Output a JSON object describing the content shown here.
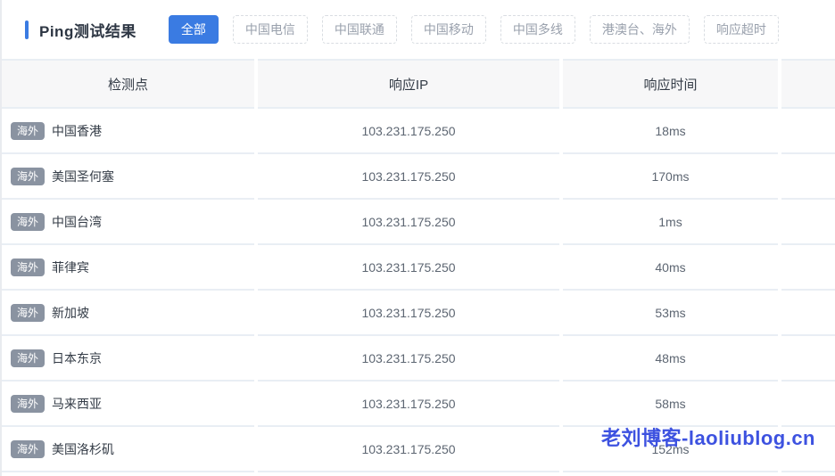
{
  "header": {
    "title": "Ping测试结果",
    "filters": [
      {
        "label": "全部",
        "active": true
      },
      {
        "label": "中国电信",
        "active": false
      },
      {
        "label": "中国联通",
        "active": false
      },
      {
        "label": "中国移动",
        "active": false
      },
      {
        "label": "中国多线",
        "active": false
      },
      {
        "label": "港澳台、海外",
        "active": false
      },
      {
        "label": "响应超时",
        "active": false
      }
    ]
  },
  "table": {
    "columns": [
      "检测点",
      "响应IP",
      "响应时间"
    ],
    "rows": [
      {
        "tag": "海外",
        "location": "中国香港",
        "ip": "103.231.175.250",
        "time": "18ms"
      },
      {
        "tag": "海外",
        "location": "美国圣何塞",
        "ip": "103.231.175.250",
        "time": "170ms"
      },
      {
        "tag": "海外",
        "location": "中国台湾",
        "ip": "103.231.175.250",
        "time": "1ms"
      },
      {
        "tag": "海外",
        "location": "菲律宾",
        "ip": "103.231.175.250",
        "time": "40ms"
      },
      {
        "tag": "海外",
        "location": "新加坡",
        "ip": "103.231.175.250",
        "time": "53ms"
      },
      {
        "tag": "海外",
        "location": "日本东京",
        "ip": "103.231.175.250",
        "time": "48ms"
      },
      {
        "tag": "海外",
        "location": "马来西亚",
        "ip": "103.231.175.250",
        "time": "58ms"
      },
      {
        "tag": "海外",
        "location": "美国洛杉矶",
        "ip": "103.231.175.250",
        "time": "152ms"
      }
    ]
  },
  "watermark": {
    "text": "老刘博客-laoliublog.cn"
  },
  "colors": {
    "accent": "#3a7be2",
    "badge": "#8a93a1",
    "line": "#e9eef4",
    "watermark": "#3d52e0"
  }
}
